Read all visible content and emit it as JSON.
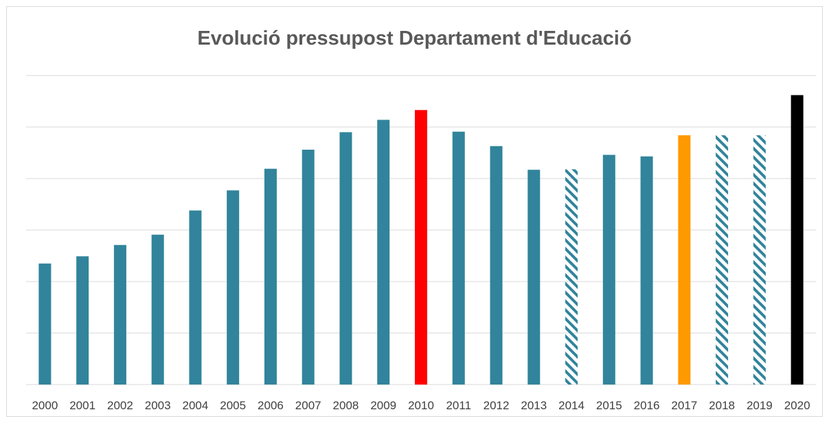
{
  "chart_data": {
    "type": "bar",
    "title": "Evolució pressupost Departament d'Educació",
    "xlabel": "",
    "ylabel": "",
    "categories": [
      "2000",
      "2001",
      "2002",
      "2003",
      "2004",
      "2005",
      "2006",
      "2007",
      "2008",
      "2009",
      "2010",
      "2011",
      "2012",
      "2013",
      "2014",
      "2015",
      "2016",
      "2017",
      "2018",
      "2019",
      "2020"
    ],
    "values": [
      2.35,
      2.49,
      2.71,
      2.91,
      3.38,
      3.77,
      4.19,
      4.56,
      4.9,
      5.14,
      5.33,
      4.91,
      4.63,
      4.17,
      4.18,
      4.46,
      4.43,
      4.84,
      4.84,
      4.84,
      5.62
    ],
    "bar_styles": [
      "solid",
      "solid",
      "solid",
      "solid",
      "solid",
      "solid",
      "solid",
      "solid",
      "solid",
      "solid",
      "highlight-red",
      "solid",
      "solid",
      "solid",
      "hatched",
      "solid",
      "solid",
      "highlight-orange",
      "hatched",
      "hatched",
      "highlight-black"
    ],
    "colors": {
      "solid": "#31849b",
      "highlight-red": "#ff0000",
      "highlight-orange": "#ff9900",
      "highlight-black": "#000000",
      "hatched": "#31849b",
      "gridline": "#d9d9d9"
    },
    "ylim": [
      0,
      6
    ],
    "y_tick_step": 1,
    "y_tick_labels_visible": false,
    "grid": true,
    "legend": "none"
  }
}
